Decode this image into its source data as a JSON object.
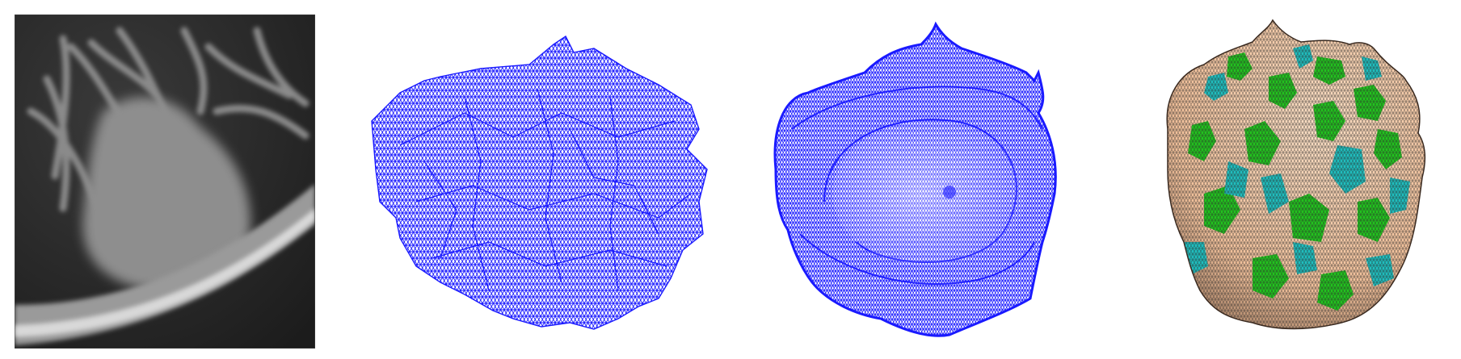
{
  "panels": [
    {
      "id": "ct-slice",
      "kind": "grayscale-ct-crop"
    },
    {
      "id": "raw-mesh",
      "kind": "wireframe",
      "stroke_color": "#1a1aff"
    },
    {
      "id": "smoothed-mesh",
      "kind": "wireframe",
      "stroke_color": "#1a1aff"
    },
    {
      "id": "curvature-mesh",
      "kind": "shaded-mesh",
      "colors": {
        "surface": "#f6c7a3",
        "concave": "#1fbfbf",
        "convex": "#22c41e",
        "edges": "#2a2a2a"
      }
    }
  ]
}
